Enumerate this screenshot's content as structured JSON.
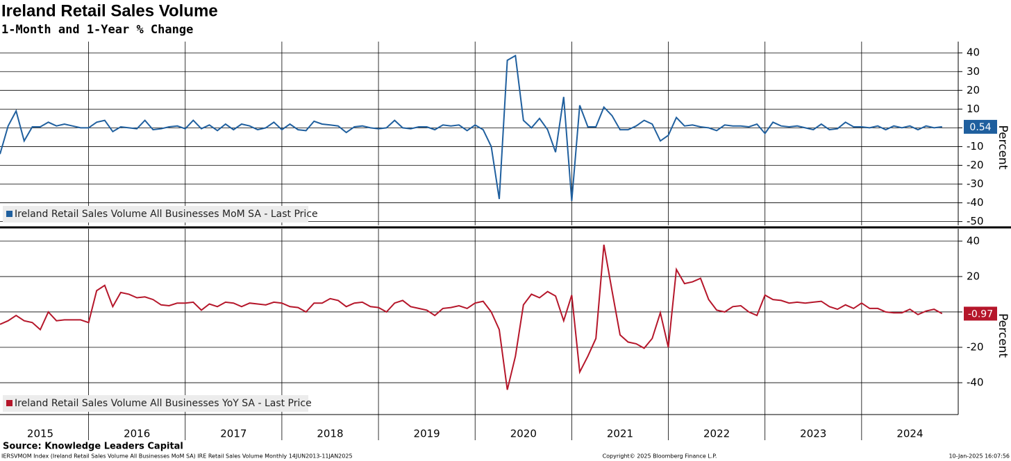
{
  "chart_data": [
    {
      "type": "line",
      "title": "Ireland Retail Sales Volume",
      "subtitle": "1-Month and 1-Year % Change",
      "y_label": "Percent",
      "x": [
        2015.083,
        2015.167,
        2015.25,
        2015.333,
        2015.417,
        2015.5,
        2015.583,
        2015.667,
        2015.75,
        2015.833,
        2015.917,
        2016,
        2016.083,
        2016.167,
        2016.25,
        2016.333,
        2016.417,
        2016.5,
        2016.583,
        2016.667,
        2016.75,
        2016.833,
        2016.917,
        2017,
        2017.083,
        2017.167,
        2017.25,
        2017.333,
        2017.417,
        2017.5,
        2017.583,
        2017.667,
        2017.75,
        2017.833,
        2017.917,
        2018,
        2018.083,
        2018.167,
        2018.25,
        2018.333,
        2018.417,
        2018.5,
        2018.583,
        2018.667,
        2018.75,
        2018.833,
        2018.917,
        2019,
        2019.083,
        2019.167,
        2019.25,
        2019.333,
        2019.417,
        2019.5,
        2019.583,
        2019.667,
        2019.75,
        2019.833,
        2019.917,
        2020,
        2020.083,
        2020.167,
        2020.25,
        2020.333,
        2020.417,
        2020.5,
        2020.583,
        2020.667,
        2020.75,
        2020.833,
        2020.917,
        2021,
        2021.083,
        2021.167,
        2021.25,
        2021.333,
        2021.417,
        2021.5,
        2021.583,
        2021.667,
        2021.75,
        2021.833,
        2021.917,
        2022,
        2022.083,
        2022.167,
        2022.25,
        2022.333,
        2022.417,
        2022.5,
        2022.583,
        2022.667,
        2022.75,
        2022.833,
        2022.917,
        2023,
        2023.083,
        2023.167,
        2023.25,
        2023.333,
        2023.417,
        2023.5,
        2023.583,
        2023.667,
        2023.75,
        2023.833,
        2023.917,
        2024,
        2024.083,
        2024.167,
        2024.25,
        2024.333,
        2024.417,
        2024.5,
        2024.583,
        2024.667,
        2024.75,
        2024.833
      ],
      "series": [
        {
          "name": "Ireland Retail Sales Volume All Businesses MoM SA - Last Price",
          "color": "#1f5f9e",
          "values": [
            -14,
            1,
            9,
            -7,
            0.5,
            0.5,
            3,
            1,
            2,
            1,
            0,
            0,
            3,
            4,
            -2,
            0.5,
            0,
            -0.5,
            4,
            -1,
            -0.5,
            0.5,
            1,
            -0.5,
            4,
            -0.5,
            1.5,
            -1.5,
            2,
            -1,
            2,
            1,
            -1,
            0,
            3,
            -1,
            2,
            -1,
            -1.5,
            3.5,
            2,
            1.5,
            1,
            -2.5,
            0.5,
            1,
            0,
            -0.5,
            0,
            4,
            0,
            -0.5,
            0.5,
            0.5,
            -1,
            1.5,
            1,
            1.5,
            -1.5,
            1.5,
            -1,
            -10,
            -38,
            36,
            38.5,
            4,
            0,
            5,
            -1,
            -13,
            16.5,
            -39,
            12,
            0.5,
            0.5,
            11,
            6.5,
            -1,
            -1,
            1,
            4,
            2,
            -7,
            -4,
            5.5,
            1,
            1.5,
            0.5,
            0,
            -1.5,
            1.5,
            1,
            1,
            0.5,
            2,
            -3,
            3,
            1,
            0.5,
            1,
            0,
            -1,
            2,
            -1,
            -0.5,
            3,
            0.5,
            0.5,
            0,
            1,
            -1,
            1,
            0,
            1,
            -1,
            1,
            0,
            0.54
          ]
        }
      ],
      "xlim": [
        2015.083,
        2025
      ],
      "xgrid": [
        2016,
        2017,
        2018,
        2019,
        2020,
        2021,
        2022,
        2023,
        2024
      ],
      "ylim": [
        -52,
        46
      ],
      "yticks": [
        40,
        30,
        20,
        10,
        0,
        -10,
        -20,
        -30,
        -40,
        -50
      ],
      "grid": true
    },
    {
      "type": "line",
      "y_label": "Percent",
      "x": [
        2015.083,
        2015.167,
        2015.25,
        2015.333,
        2015.417,
        2015.5,
        2015.583,
        2015.667,
        2015.75,
        2015.833,
        2015.917,
        2016,
        2016.083,
        2016.167,
        2016.25,
        2016.333,
        2016.417,
        2016.5,
        2016.583,
        2016.667,
        2016.75,
        2016.833,
        2016.917,
        2017,
        2017.083,
        2017.167,
        2017.25,
        2017.333,
        2017.417,
        2017.5,
        2017.583,
        2017.667,
        2017.75,
        2017.833,
        2017.917,
        2018,
        2018.083,
        2018.167,
        2018.25,
        2018.333,
        2018.417,
        2018.5,
        2018.583,
        2018.667,
        2018.75,
        2018.833,
        2018.917,
        2019,
        2019.083,
        2019.167,
        2019.25,
        2019.333,
        2019.417,
        2019.5,
        2019.583,
        2019.667,
        2019.75,
        2019.833,
        2019.917,
        2020,
        2020.083,
        2020.167,
        2020.25,
        2020.333,
        2020.417,
        2020.5,
        2020.583,
        2020.667,
        2020.75,
        2020.833,
        2020.917,
        2021,
        2021.083,
        2021.167,
        2021.25,
        2021.333,
        2021.417,
        2021.5,
        2021.583,
        2021.667,
        2021.75,
        2021.833,
        2021.917,
        2022,
        2022.083,
        2022.167,
        2022.25,
        2022.333,
        2022.417,
        2022.5,
        2022.583,
        2022.667,
        2022.75,
        2022.833,
        2022.917,
        2023,
        2023.083,
        2023.167,
        2023.25,
        2023.333,
        2023.417,
        2023.5,
        2023.583,
        2023.667,
        2023.75,
        2023.833,
        2023.917,
        2024,
        2024.083,
        2024.167,
        2024.25,
        2024.333,
        2024.417,
        2024.5,
        2024.583,
        2024.667,
        2024.75,
        2024.833
      ],
      "series": [
        {
          "name": "Ireland Retail Sales Volume All Businesses YoY SA - Last Price",
          "color": "#b5162a",
          "values": [
            -7,
            -5,
            -2,
            -5,
            -6,
            -10,
            0,
            -5,
            -4.5,
            -4.5,
            -4.5,
            -6,
            12,
            15,
            3,
            11,
            10,
            8,
            8.5,
            7,
            4,
            3.5,
            5,
            5,
            5.5,
            1,
            4.5,
            3,
            5.5,
            5,
            3,
            5,
            4.5,
            4,
            5.5,
            5,
            3,
            2.5,
            0,
            5,
            5,
            7.5,
            6.5,
            3,
            5,
            5.5,
            3,
            2.5,
            0,
            5,
            6.5,
            3,
            2,
            1,
            -2,
            2,
            2.5,
            3.5,
            2,
            5,
            6,
            0,
            -10,
            -44,
            -25,
            4,
            10,
            8,
            11.5,
            9,
            -5,
            9.5,
            -34,
            -25,
            -15,
            38,
            12,
            -13,
            -17,
            -18,
            -20.5,
            -15,
            -0.5,
            -20,
            24,
            16,
            17,
            19,
            7,
            1,
            0,
            3,
            3.5,
            0,
            -2,
            9.5,
            7,
            6.5,
            5,
            5.5,
            5,
            5.5,
            6,
            3,
            1.5,
            4,
            2,
            5,
            2,
            2,
            0,
            -0.5,
            -0.5,
            1.5,
            -1.5,
            0.5,
            1.5,
            -0.97
          ]
        }
      ],
      "xlim": [
        2015.083,
        2025
      ],
      "xgrid": [
        2016,
        2017,
        2018,
        2019,
        2020,
        2021,
        2022,
        2023,
        2024
      ],
      "xticks": [
        {
          "value": 2015.5,
          "label": "2015"
        },
        {
          "value": 2016.5,
          "label": "2016"
        },
        {
          "value": 2017.5,
          "label": "2017"
        },
        {
          "value": 2018.5,
          "label": "2018"
        },
        {
          "value": 2019.5,
          "label": "2019"
        },
        {
          "value": 2020.5,
          "label": "2020"
        },
        {
          "value": 2021.5,
          "label": "2021"
        },
        {
          "value": 2022.5,
          "label": "2022"
        },
        {
          "value": 2023.5,
          "label": "2023"
        },
        {
          "value": 2024.5,
          "label": "2024"
        }
      ],
      "ylim": [
        -58,
        47
      ],
      "yticks": [
        40,
        20,
        0,
        -20,
        -40
      ],
      "grid": true
    }
  ],
  "source": "Source: Knowledge Leaders Capital",
  "footer": {
    "left": "IERSVMOM Index (Ireland Retail Sales Volume All Businesses MoM SA) IRE Retail Sales Volume  Monthly 14JUN2013-11JAN2025",
    "center": "Copyright© 2025 Bloomberg Finance L.P.",
    "right": "10-Jan-2025 16:07:56"
  }
}
